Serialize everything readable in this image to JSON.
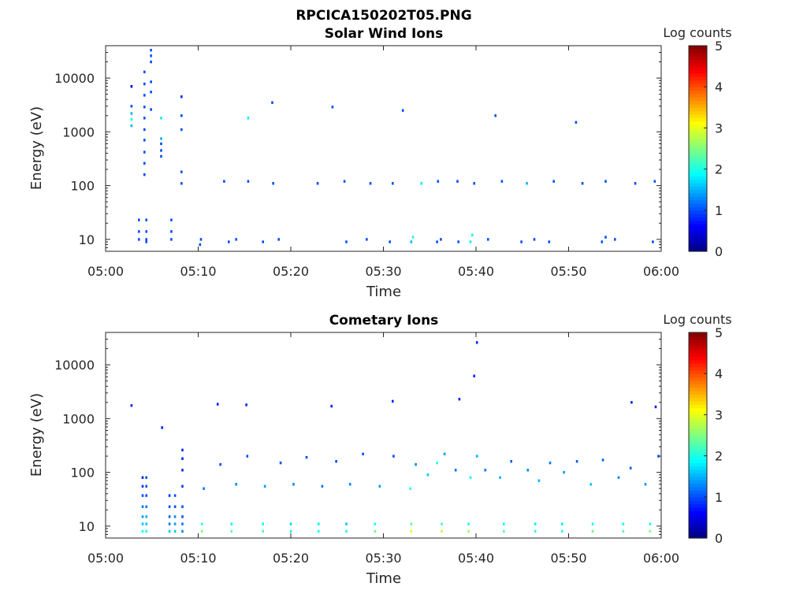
{
  "figure": {
    "title": "RPCICA150202T05.PNG"
  },
  "colors": {
    "axis": "#262626",
    "background": "#ffffff"
  },
  "chart_data": [
    {
      "type": "heatmap",
      "title": "Solar Wind Ions",
      "xlabel": "Time",
      "ylabel": "Energy (eV)",
      "x_range": [
        "05:00",
        "06:00"
      ],
      "x_ticks": [
        "05:00",
        "05:10",
        "05:20",
        "05:30",
        "05:40",
        "05:50",
        "06:00"
      ],
      "y_scale": "log",
      "ylim": [
        6,
        40000
      ],
      "y_ticks": [
        10,
        100,
        1000,
        10000
      ],
      "y_tick_labels": [
        "10",
        "100",
        "1000",
        "10000"
      ],
      "colorbar": {
        "label": "Log counts",
        "range": [
          0,
          5
        ],
        "ticks": [
          "0",
          "1",
          "2",
          "3",
          "4",
          "5"
        ],
        "colormap": "jet"
      },
      "cells": [
        [
          3.6,
          10,
          1.0
        ],
        [
          3.6,
          14,
          1.0
        ],
        [
          3.6,
          23,
          1.0
        ],
        [
          4.4,
          10,
          1.0
        ],
        [
          4.4,
          14,
          1.0
        ],
        [
          4.4,
          23,
          1.0
        ],
        [
          4.4,
          9,
          1.0
        ],
        [
          2.8,
          3000,
          1.0
        ],
        [
          2.8,
          2200,
          1.5
        ],
        [
          2.8,
          1700,
          2.0
        ],
        [
          2.8,
          1300,
          1.5
        ],
        [
          2.8,
          7000,
          0.5
        ],
        [
          4.2,
          160,
          1.0
        ],
        [
          4.2,
          260,
          1.0
        ],
        [
          4.2,
          420,
          1.0
        ],
        [
          4.2,
          700,
          1.0
        ],
        [
          4.2,
          1100,
          1.0
        ],
        [
          4.2,
          1800,
          1.0
        ],
        [
          4.2,
          2900,
          1.0
        ],
        [
          4.2,
          4800,
          1.0
        ],
        [
          4.2,
          7800,
          1.0
        ],
        [
          4.2,
          13000,
          1.0
        ],
        [
          4.9,
          26000,
          1.0
        ],
        [
          4.9,
          33000,
          1.0
        ],
        [
          4.9,
          20000,
          1.0
        ],
        [
          4.9,
          8500,
          1.0
        ],
        [
          4.9,
          5500,
          1.0
        ],
        [
          4.9,
          2600,
          1.0
        ],
        [
          6.0,
          1800,
          1.8
        ],
        [
          6.0,
          750,
          1.5
        ],
        [
          6.0,
          600,
          1.0
        ],
        [
          6.0,
          450,
          1.0
        ],
        [
          6.0,
          350,
          1.0
        ],
        [
          7.1,
          10,
          1.0
        ],
        [
          7.1,
          14,
          1.0
        ],
        [
          7.1,
          23,
          1.0
        ],
        [
          8.2,
          4500,
          0.8
        ],
        [
          8.2,
          2000,
          1.0
        ],
        [
          8.2,
          1100,
          1.0
        ],
        [
          8.2,
          180,
          1.0
        ],
        [
          8.2,
          110,
          1.0
        ],
        [
          10.3,
          10,
          1.0
        ],
        [
          10.2,
          8,
          1.0
        ],
        [
          13.3,
          9,
          1.0
        ],
        [
          14.1,
          10,
          1.0
        ],
        [
          17.0,
          9,
          1.0
        ],
        [
          18.7,
          10,
          1.0
        ],
        [
          26.0,
          9,
          1.0
        ],
        [
          28.2,
          10,
          1.0
        ],
        [
          30.7,
          9,
          1.0
        ],
        [
          33.0,
          9,
          1.5
        ],
        [
          33.2,
          11,
          2.0
        ],
        [
          35.8,
          9,
          1.0
        ],
        [
          36.2,
          10,
          1.0
        ],
        [
          38.1,
          9,
          1.0
        ],
        [
          39.4,
          9,
          1.8
        ],
        [
          39.6,
          12,
          2.0
        ],
        [
          41.3,
          10,
          1.0
        ],
        [
          44.9,
          9,
          1.0
        ],
        [
          46.3,
          10,
          1.0
        ],
        [
          47.9,
          9,
          1.0
        ],
        [
          53.6,
          9,
          1.0
        ],
        [
          54.0,
          11,
          1.0
        ],
        [
          55.0,
          10,
          1.0
        ],
        [
          59.1,
          9,
          1.0
        ],
        [
          12.8,
          120,
          1.0
        ],
        [
          15.4,
          120,
          1.0
        ],
        [
          18.1,
          110,
          1.0
        ],
        [
          22.9,
          110,
          1.0
        ],
        [
          25.8,
          120,
          1.0
        ],
        [
          28.6,
          110,
          1.0
        ],
        [
          31.0,
          110,
          1.0
        ],
        [
          34.1,
          110,
          1.8
        ],
        [
          35.9,
          120,
          1.0
        ],
        [
          38.0,
          120,
          1.0
        ],
        [
          39.8,
          110,
          1.0
        ],
        [
          42.8,
          120,
          1.0
        ],
        [
          45.5,
          110,
          1.5
        ],
        [
          48.4,
          120,
          1.0
        ],
        [
          51.5,
          110,
          1.0
        ],
        [
          54.0,
          120,
          1.0
        ],
        [
          57.2,
          110,
          1.0
        ],
        [
          59.3,
          120,
          1.0
        ],
        [
          15.4,
          1800,
          1.8
        ],
        [
          18.0,
          3500,
          1.0
        ],
        [
          24.5,
          2900,
          1.0
        ],
        [
          32.1,
          2500,
          1.0
        ],
        [
          42.1,
          2000,
          1.0
        ],
        [
          50.8,
          1500,
          1.0
        ]
      ]
    },
    {
      "type": "heatmap",
      "title": "Cometary Ions",
      "xlabel": "Time",
      "ylabel": "Energy (eV)",
      "x_range": [
        "05:00",
        "06:00"
      ],
      "x_ticks": [
        "05:00",
        "05:10",
        "05:20",
        "05:30",
        "05:40",
        "05:50",
        "06:00"
      ],
      "y_scale": "log",
      "ylim": [
        6,
        40000
      ],
      "y_ticks": [
        10,
        100,
        1000,
        10000
      ],
      "y_tick_labels": [
        "10",
        "100",
        "1000",
        "10000"
      ],
      "colorbar": {
        "label": "Log counts",
        "range": [
          0,
          5
        ],
        "ticks": [
          "0",
          "1",
          "2",
          "3",
          "4",
          "5"
        ],
        "colormap": "jet"
      },
      "cells": [
        [
          2.8,
          1750,
          0.8
        ],
        [
          6.1,
          680,
          0.8
        ],
        [
          4.0,
          8,
          2.0
        ],
        [
          4.0,
          11,
          1.6
        ],
        [
          4.0,
          15,
          1.4
        ],
        [
          4.0,
          23,
          1.2
        ],
        [
          4.0,
          37,
          1.0
        ],
        [
          4.0,
          55,
          0.9
        ],
        [
          4.0,
          80,
          0.8
        ],
        [
          4.4,
          8,
          2.0
        ],
        [
          4.4,
          11,
          1.6
        ],
        [
          4.4,
          15,
          1.5
        ],
        [
          4.4,
          23,
          1.2
        ],
        [
          4.4,
          37,
          1.0
        ],
        [
          4.4,
          55,
          1.0
        ],
        [
          4.4,
          80,
          1.0
        ],
        [
          6.9,
          8,
          1.6
        ],
        [
          6.9,
          11,
          1.2
        ],
        [
          6.9,
          15,
          1.1
        ],
        [
          6.9,
          23,
          1.0
        ],
        [
          6.9,
          37,
          0.9
        ],
        [
          7.5,
          8,
          1.6
        ],
        [
          7.5,
          11,
          1.4
        ],
        [
          7.5,
          15,
          1.3
        ],
        [
          7.5,
          23,
          1.0
        ],
        [
          7.5,
          37,
          1.0
        ],
        [
          8.3,
          8,
          1.3
        ],
        [
          8.3,
          11,
          1.2
        ],
        [
          8.3,
          15,
          1.0
        ],
        [
          8.3,
          23,
          1.0
        ],
        [
          8.3,
          55,
          0.9
        ],
        [
          8.3,
          110,
          0.8
        ],
        [
          8.3,
          180,
          0.8
        ],
        [
          8.3,
          260,
          0.8
        ],
        [
          10.4,
          8,
          2.5
        ],
        [
          10.4,
          11,
          2.0
        ],
        [
          13.6,
          8,
          2.3
        ],
        [
          13.6,
          11,
          1.9
        ],
        [
          17.0,
          8,
          2.2
        ],
        [
          17.0,
          11,
          1.9
        ],
        [
          20.0,
          8,
          2.0
        ],
        [
          20.0,
          11,
          1.7
        ],
        [
          23.0,
          8,
          2.0
        ],
        [
          23.0,
          11,
          1.8
        ],
        [
          26.0,
          8,
          2.0
        ],
        [
          26.0,
          11,
          1.6
        ],
        [
          29.1,
          8,
          2.4
        ],
        [
          29.1,
          11,
          2.0
        ],
        [
          33.0,
          8,
          3.0
        ],
        [
          33.0,
          11,
          2.4
        ],
        [
          36.3,
          8,
          2.8
        ],
        [
          36.3,
          11,
          2.2
        ],
        [
          39.2,
          8,
          2.6
        ],
        [
          39.2,
          11,
          2.0
        ],
        [
          43.0,
          8,
          2.3
        ],
        [
          43.0,
          11,
          1.9
        ],
        [
          46.4,
          8,
          2.1
        ],
        [
          46.4,
          11,
          1.8
        ],
        [
          49.3,
          8,
          2.0
        ],
        [
          49.3,
          11,
          1.8
        ],
        [
          52.6,
          8,
          2.4
        ],
        [
          52.6,
          11,
          2.0
        ],
        [
          55.9,
          8,
          2.3
        ],
        [
          55.9,
          11,
          1.9
        ],
        [
          58.8,
          8,
          2.5
        ],
        [
          58.8,
          11,
          2.0
        ],
        [
          10.6,
          50,
          1.2
        ],
        [
          12.4,
          140,
          1.0
        ],
        [
          14.1,
          60,
          1.3
        ],
        [
          15.3,
          200,
          1.0
        ],
        [
          17.2,
          55,
          1.4
        ],
        [
          18.9,
          150,
          1.0
        ],
        [
          20.3,
          60,
          1.3
        ],
        [
          21.7,
          190,
          1.0
        ],
        [
          23.4,
          55,
          1.2
        ],
        [
          24.9,
          160,
          1.0
        ],
        [
          26.4,
          60,
          1.3
        ],
        [
          27.8,
          220,
          1.0
        ],
        [
          29.6,
          55,
          1.4
        ],
        [
          31.1,
          200,
          1.0
        ],
        [
          32.9,
          50,
          2.0
        ],
        [
          33.5,
          140,
          1.3
        ],
        [
          34.8,
          90,
          1.6
        ],
        [
          35.8,
          150,
          2.0
        ],
        [
          36.6,
          220,
          1.4
        ],
        [
          37.8,
          110,
          1.2
        ],
        [
          39.4,
          80,
          1.9
        ],
        [
          40.1,
          200,
          1.5
        ],
        [
          41.0,
          110,
          1.2
        ],
        [
          42.6,
          80,
          1.5
        ],
        [
          43.8,
          160,
          1.1
        ],
        [
          45.6,
          110,
          1.3
        ],
        [
          46.8,
          70,
          1.5
        ],
        [
          48.0,
          150,
          1.2
        ],
        [
          49.5,
          100,
          1.4
        ],
        [
          50.9,
          160,
          1.1
        ],
        [
          52.4,
          60,
          1.6
        ],
        [
          53.7,
          170,
          1.1
        ],
        [
          55.4,
          80,
          1.3
        ],
        [
          56.7,
          120,
          1.1
        ],
        [
          58.3,
          60,
          1.4
        ],
        [
          59.7,
          200,
          1.0
        ],
        [
          12.1,
          1850,
          0.8
        ],
        [
          15.2,
          1800,
          0.8
        ],
        [
          24.4,
          1700,
          0.8
        ],
        [
          31.0,
          2100,
          0.8
        ],
        [
          38.2,
          2300,
          0.8
        ],
        [
          40.1,
          26000,
          0.8
        ],
        [
          39.8,
          6200,
          0.8
        ],
        [
          56.8,
          2000,
          0.8
        ],
        [
          59.4,
          1650,
          0.8
        ]
      ]
    }
  ]
}
